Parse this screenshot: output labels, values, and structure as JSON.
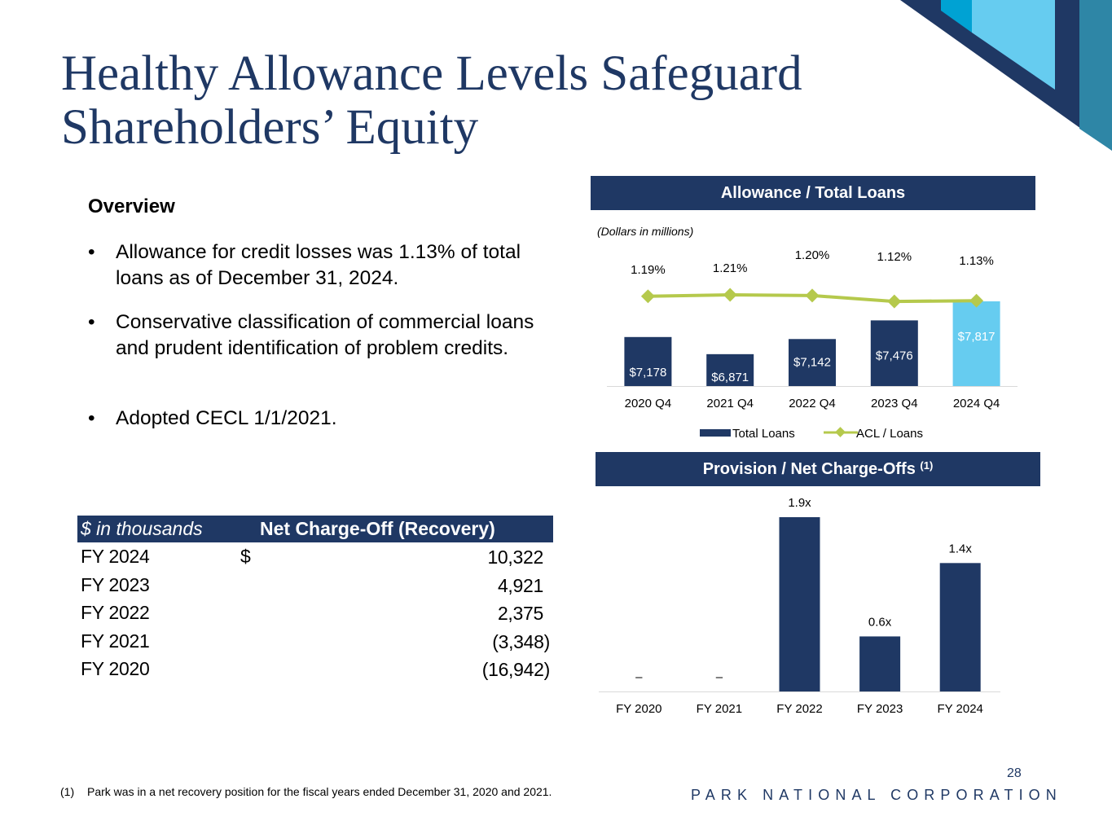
{
  "title": "Healthy Allowance Levels Safeguard Shareholders’ Equity",
  "overview": {
    "heading": "Overview",
    "bullet_symbol": "•",
    "bullets": [
      "Allowance for credit losses was 1.13% of total loans as of December 31, 2024.",
      "Conservative classification of commercial loans and prudent identification of problem credits.",
      "Adopted CECL 1/1/2021."
    ]
  },
  "nco_table": {
    "unit_label": "$ in thousands",
    "header": "Net Charge-Off (Recovery)",
    "rows": [
      {
        "year": "FY 2024",
        "dollar": "$",
        "value": "10,322"
      },
      {
        "year": "FY 2023",
        "dollar": "",
        "value": "4,921"
      },
      {
        "year": "FY 2022",
        "dollar": "",
        "value": "2,375"
      },
      {
        "year": "FY 2021",
        "dollar": "",
        "value": "(3,348)"
      },
      {
        "year": "FY 2020",
        "dollar": "",
        "value": "(16,942)"
      }
    ]
  },
  "allowance_chart": {
    "header": "Allowance / Total Loans",
    "note": "(Dollars in millions)"
  },
  "provision_chart": {
    "header": "Provision / Net Charge-Offs",
    "header_sup": "(1)"
  },
  "chart_data": [
    {
      "type": "bar",
      "title": "Allowance / Total Loans",
      "subtitle": "(Dollars in millions)",
      "categories": [
        "2020 Q4",
        "2021 Q4",
        "2022 Q4",
        "2023 Q4",
        "2024 Q4"
      ],
      "series": [
        {
          "name": "Total Loans",
          "type": "bar",
          "values": [
            7178,
            6871,
            7142,
            7476,
            7817
          ],
          "labels": [
            "$7,178",
            "$6,871",
            "$7,142",
            "$7,476",
            "$7,817"
          ],
          "color": "#1f3864",
          "highlight_color": "#66ccf0"
        },
        {
          "name": "ACL / Loans",
          "type": "line",
          "values": [
            1.19,
            1.21,
            1.2,
            1.12,
            1.13
          ],
          "labels": [
            "1.19%",
            "1.21%",
            "1.20%",
            "1.12%",
            "1.13%"
          ],
          "color": "#b5c94c"
        }
      ],
      "legend": "bottom"
    },
    {
      "type": "bar",
      "title": "Provision / Net Charge-Offs",
      "categories": [
        "FY 2020",
        "FY 2021",
        "FY 2022",
        "FY 2023",
        "FY 2024"
      ],
      "values": [
        0,
        0,
        1.9,
        0.6,
        1.4
      ],
      "labels": [
        "–",
        "–",
        "1.9x",
        "0.6x",
        "1.4x"
      ],
      "color": "#1f3864"
    }
  ],
  "footnote": {
    "number": "(1)",
    "text": "Park was in a net recovery position for the fiscal years ended December 31, 2020 and 2021."
  },
  "page_number": "28",
  "company_name": "PARK NATIONAL CORPORATION",
  "colors": {
    "navy": "#1f3864",
    "light_blue": "#66ccf0",
    "cyan": "#00a2d3",
    "teal": "#2e86a6",
    "line_green": "#b5c94c"
  }
}
